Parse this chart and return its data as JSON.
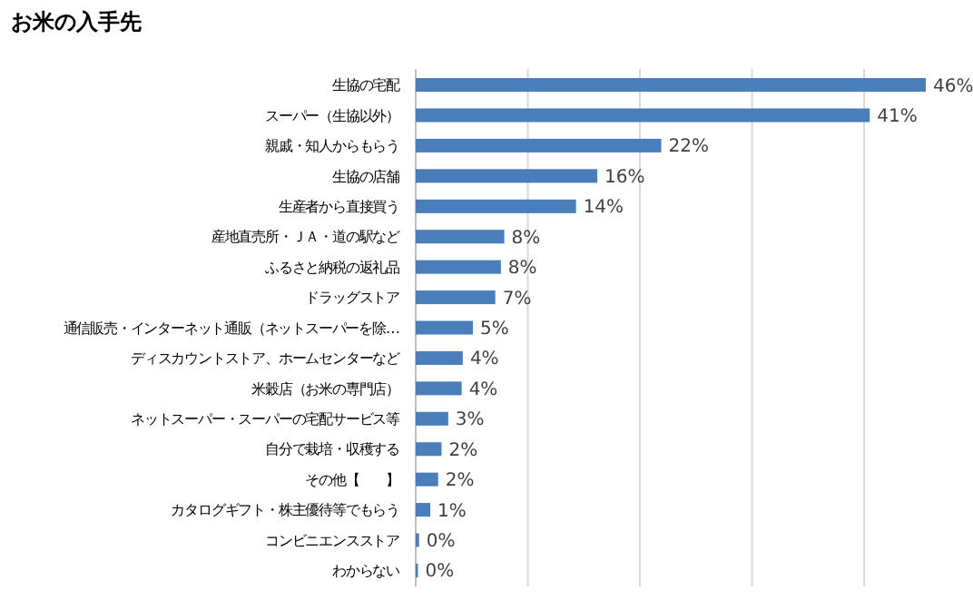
{
  "chart_data": {
    "type": "bar",
    "orientation": "horizontal",
    "title": "お米の入手先",
    "categories": [
      "生協の宅配",
      "スーパー（生協以外）",
      "親戚・知人からもらう",
      "生協の店舗",
      "生産者から直接買う",
      "産地直売所・ＪＡ・道の駅など",
      "ふるさと納税の返礼品",
      "ドラッグストア",
      "通信販売・インターネット通販（ネットスーパーを除…",
      "ディスカウントストア、ホームセンターなど",
      "米穀店（お米の専門店）",
      "ネットスーパー・スーパーの宅配サービス等",
      "自分で栽培・収穫する",
      "その他【　　】",
      "カタログギフト・株主優待等でもらう",
      "コンビニエンスストア",
      "わからない"
    ],
    "values": [
      45.5,
      40.5,
      21.9,
      16.2,
      14.3,
      7.9,
      7.6,
      7.1,
      5.1,
      4.2,
      4.1,
      2.9,
      2.3,
      2.0,
      1.3,
      0.3,
      0.2
    ],
    "value_labels": [
      "46%",
      "41%",
      "22%",
      "16%",
      "14%",
      "8%",
      "8%",
      "7%",
      "5%",
      "4%",
      "4%",
      "3%",
      "2%",
      "2%",
      "1%",
      "0%",
      "0%"
    ],
    "color": "#4a7ebb",
    "xticks": [
      {
        "value": 0,
        "label": null
      },
      {
        "value": 10,
        "label": null
      },
      {
        "value": 20,
        "label": null
      },
      {
        "value": 30,
        "label": null
      },
      {
        "value": 40,
        "label": null
      }
    ],
    "tick_labels": "y",
    "grid": "x"
  }
}
